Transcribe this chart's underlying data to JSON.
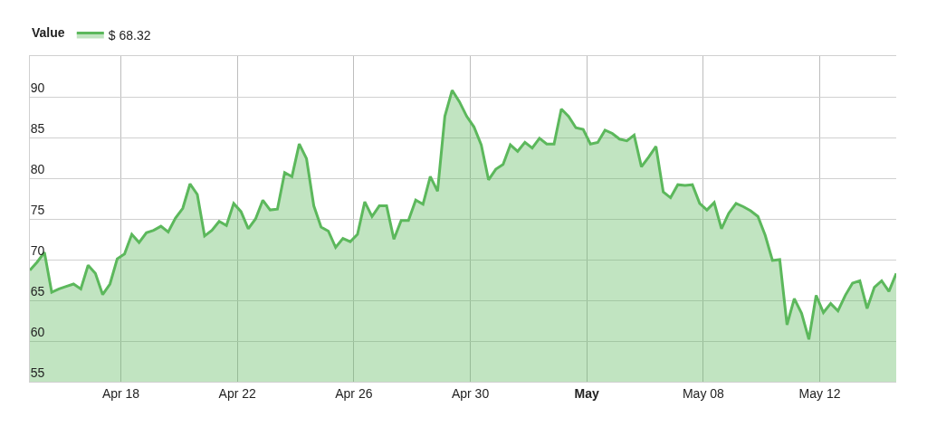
{
  "chart_data": {
    "type": "area",
    "legend_title": "Value",
    "legend": "top left",
    "grid": true,
    "marker": "none",
    "line_style": "solid",
    "x": [
      "--04-14T21:00",
      "--04-15T03:00",
      "--04-15T09:00",
      "--04-15T15:00",
      "--04-15T21:00",
      "--04-16T03:00",
      "--04-16T09:00",
      "--04-16T15:00",
      "--04-16T21:00",
      "--04-17T03:00",
      "--04-17T09:00",
      "--04-17T15:00",
      "--04-17T21:00",
      "--04-18T03:00",
      "--04-18T09:00",
      "--04-18T15:00",
      "--04-18T21:00",
      "--04-19T03:00",
      "--04-19T09:00",
      "--04-19T15:00",
      "--04-19T21:00",
      "--04-20T03:00",
      "--04-20T09:00",
      "--04-20T15:00",
      "--04-20T21:00",
      "--04-21T03:00",
      "--04-21T09:00",
      "--04-21T15:00",
      "--04-21T21:00",
      "--04-22T03:00",
      "--04-22T09:00",
      "--04-22T15:00",
      "--04-22T21:00",
      "--04-23T03:00",
      "--04-23T09:00",
      "--04-23T15:00",
      "--04-23T21:00",
      "--04-24T03:00",
      "--04-24T09:00",
      "--04-24T15:00",
      "--04-24T21:00",
      "--04-25T03:00",
      "--04-25T09:00",
      "--04-25T15:00",
      "--04-25T21:00",
      "--04-26T03:00",
      "--04-26T09:00",
      "--04-26T15:00",
      "--04-26T21:00",
      "--04-27T03:00",
      "--04-27T09:00",
      "--04-27T15:00",
      "--04-27T21:00",
      "--04-28T03:00",
      "--04-28T09:00",
      "--04-28T15:00",
      "--04-28T21:00",
      "--04-29T03:00",
      "--04-29T09:00",
      "--04-29T15:00",
      "--04-29T21:00",
      "--04-30T03:00",
      "--04-30T09:00",
      "--04-30T15:00",
      "--04-30T21:00",
      "--05-01T03:00",
      "--05-01T09:00",
      "--05-01T15:00",
      "--05-01T21:00",
      "--05-02T03:00",
      "--05-02T09:00",
      "--05-02T15:00",
      "--05-02T21:00",
      "--05-03T03:00",
      "--05-03T09:00",
      "--05-03T15:00",
      "--05-03T21:00",
      "--05-04T03:00",
      "--05-04T09:00",
      "--05-04T15:00",
      "--05-04T21:00",
      "--05-05T03:00",
      "--05-05T09:00",
      "--05-05T15:00",
      "--05-05T21:00",
      "--05-06T03:00",
      "--05-06T09:00",
      "--05-06T15:00",
      "--05-06T21:00",
      "--05-07T03:00",
      "--05-07T09:00",
      "--05-07T15:00",
      "--05-07T21:00",
      "--05-08T03:00",
      "--05-08T09:00",
      "--05-08T15:00",
      "--05-08T21:00",
      "--05-09T03:00",
      "--05-09T09:00",
      "--05-09T15:00",
      "--05-09T21:00",
      "--05-10T03:00",
      "--05-10T09:00",
      "--05-10T15:00",
      "--05-10T21:00",
      "--05-11T03:00",
      "--05-11T09:00",
      "--05-11T15:00",
      "--05-11T21:00",
      "--05-12T03:00",
      "--05-12T09:00",
      "--05-12T15:00",
      "--05-12T21:00",
      "--05-13T03:00",
      "--05-13T09:00",
      "--05-13T15:00",
      "--05-13T21:00",
      "--05-14T03:00",
      "--05-14T09:00",
      "--05-14T15:00"
    ],
    "series": [
      {
        "name": "$ 68.32",
        "color": "#5cb85c",
        "values": [
          68.7,
          69.7,
          70.9,
          66.0,
          66.4,
          66.7,
          67.0,
          66.4,
          69.3,
          68.3,
          65.7,
          67.0,
          70.1,
          70.7,
          73.1,
          72.1,
          73.3,
          73.6,
          74.1,
          73.4,
          75.1,
          76.3,
          79.3,
          78.0,
          72.9,
          73.6,
          74.7,
          74.2,
          76.9,
          75.9,
          73.8,
          75.0,
          77.3,
          76.1,
          76.2,
          80.7,
          80.2,
          84.2,
          82.4,
          76.6,
          74.0,
          73.5,
          71.5,
          72.6,
          72.2,
          73.1,
          77.1,
          75.3,
          76.6,
          76.6,
          72.5,
          74.8,
          74.8,
          77.3,
          76.8,
          80.2,
          78.4,
          87.6,
          90.8,
          89.4,
          87.6,
          86.3,
          84.1,
          79.8,
          81.1,
          81.7,
          84.1,
          83.3,
          84.4,
          83.7,
          84.9,
          84.2,
          84.2,
          88.5,
          87.6,
          86.2,
          86.0,
          84.2,
          84.4,
          85.9,
          85.5,
          84.8,
          84.6,
          85.3,
          81.4,
          82.6,
          83.9,
          78.3,
          77.6,
          79.2,
          79.1,
          79.2,
          76.9,
          76.1,
          77.0,
          73.8,
          75.7,
          76.9,
          76.5,
          76.0,
          75.3,
          73.0,
          69.9,
          70.0,
          62.0,
          65.2,
          63.4,
          60.2,
          65.6,
          63.5,
          64.6,
          63.7,
          65.6,
          67.1,
          67.4,
          64.0,
          66.6,
          67.4,
          66.1,
          68.3
        ]
      }
    ],
    "xlim": [
      "--04-14T21:00",
      "--05-14T15:00"
    ],
    "xticks": [
      {
        "value": "--04-18",
        "label": "Apr 18"
      },
      {
        "value": "--04-22",
        "label": "Apr 22"
      },
      {
        "value": "--04-26",
        "label": "Apr 26"
      },
      {
        "value": "--04-30",
        "label": "Apr 30"
      },
      {
        "value": "--05-04",
        "label": "May"
      },
      {
        "value": "--05-08",
        "label": "May 08"
      },
      {
        "value": "--05-12",
        "label": "May 12"
      }
    ],
    "ylim": [
      55,
      95
    ],
    "yticks": [
      55,
      60,
      65,
      70,
      75,
      80,
      85,
      90
    ]
  }
}
